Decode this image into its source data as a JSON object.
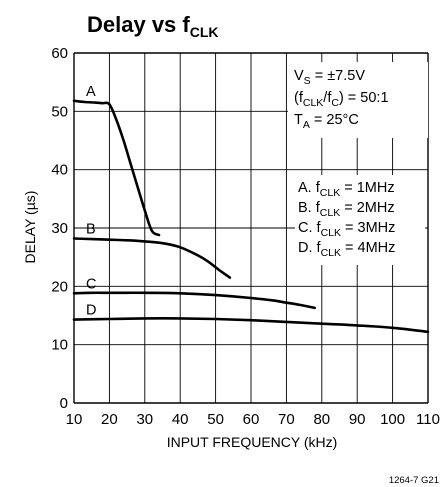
{
  "chart_data": {
    "type": "line",
    "title": "Delay vs f",
    "title_sub": "CLK",
    "xlabel": "INPUT FREQUENCY (kHz)",
    "ylabel": "DELAY (µs)",
    "xlim": [
      10,
      110
    ],
    "ylim": [
      0,
      60
    ],
    "x_ticks": [
      10,
      20,
      30,
      40,
      50,
      60,
      70,
      80,
      90,
      100,
      110
    ],
    "y_ticks": [
      0,
      10,
      20,
      30,
      40,
      50,
      60
    ],
    "grid": true,
    "conditions": {
      "vs_main": "V",
      "vs_sub": "S",
      "vs_value": " = ±7.5V",
      "ratio_pre": "(f",
      "ratio_sub1": "CLK",
      "ratio_mid": "/f",
      "ratio_sub2": "C",
      "ratio_post": ") = 50:1",
      "ta_main": "T",
      "ta_sub": "A",
      "ta_value": " = 25°C"
    },
    "legend": [
      {
        "prefix": "A. f",
        "sub": "CLK",
        "suffix": " = 1MHz"
      },
      {
        "prefix": "B. f",
        "sub": "CLK",
        "suffix": " = 2MHz"
      },
      {
        "prefix": "C. f",
        "sub": "CLK",
        "suffix": " = 3MHz"
      },
      {
        "prefix": "D. f",
        "sub": "CLK",
        "suffix": " = 4MHz"
      }
    ],
    "series": [
      {
        "name": "A",
        "x": [
          10,
          13,
          16,
          18,
          20,
          22,
          24,
          26,
          28,
          30,
          32,
          34
        ],
        "y": [
          51.8,
          51.6,
          51.5,
          51.4,
          51.2,
          48.5,
          45,
          41,
          37,
          33,
          29.5,
          28.8
        ]
      },
      {
        "name": "B",
        "x": [
          10,
          15,
          20,
          25,
          30,
          35,
          40,
          45,
          48,
          51,
          54
        ],
        "y": [
          28.2,
          28.1,
          28,
          27.9,
          27.7,
          27.4,
          26.7,
          25.3,
          24.2,
          22.8,
          21.5
        ]
      },
      {
        "name": "C",
        "x": [
          10,
          15,
          20,
          30,
          40,
          50,
          60,
          66,
          70,
          74,
          78
        ],
        "y": [
          18.8,
          18.9,
          18.9,
          18.9,
          18.8,
          18.5,
          18,
          17.6,
          17.2,
          16.8,
          16.3
        ]
      },
      {
        "name": "D",
        "x": [
          10,
          20,
          30,
          40,
          50,
          60,
          70,
          80,
          90,
          100,
          110
        ],
        "y": [
          14.3,
          14.4,
          14.5,
          14.5,
          14.4,
          14.2,
          13.9,
          13.6,
          13.3,
          12.9,
          12.2
        ]
      }
    ],
    "figure_id": "1264-7 G21"
  }
}
